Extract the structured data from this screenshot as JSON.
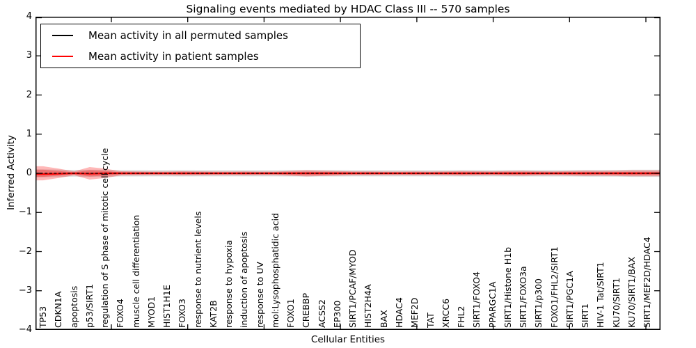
{
  "title": "Signaling events mediated by HDAC Class III -- 570 samples",
  "axes": {
    "xlabel": "Cellular Entities",
    "ylabel": "Inferred Activity",
    "ytick_labels": [
      "4",
      "3",
      "2",
      "1",
      "0",
      "−1",
      "−2",
      "−3",
      "−4"
    ]
  },
  "legend": {
    "items": [
      {
        "label": "Mean activity in all permuted samples",
        "color": "#000000"
      },
      {
        "label": "Mean activity in patient samples",
        "color": "#ff0000"
      }
    ]
  },
  "colors": {
    "patient_line": "#ff0000",
    "permuted_line": "#000000",
    "patient_band": "rgba(255,0,0,0.28)",
    "permuted_band": "rgba(0,0,0,0.14)",
    "spine": "#000000",
    "background": "#ffffff"
  },
  "chart_data": {
    "type": "line",
    "title": "Signaling events mediated by HDAC Class III -- 570 samples",
    "xlabel": "Cellular Entities",
    "ylabel": "Inferred Activity",
    "ylim": [
      -4,
      4
    ],
    "grid": false,
    "legend_position": "upper left",
    "categories": [
      "TP53",
      "CDKN1A",
      "apoptosis",
      "p53/SIRT1",
      "regulation of S phase of mitotic cell cycle",
      "FOXO4",
      "muscle cell differentiation",
      "MYOD1",
      "HIST1H1E",
      "FOXO3",
      "response to nutrient levels",
      "KAT2B",
      "response to hypoxia",
      "induction of apoptosis",
      "response to UV",
      "mol:Lysophosphatidic acid",
      "FOXO1",
      "CREBBP",
      "ACSS2",
      "EP300",
      "SIRT1/PCAF/MYOD",
      "HIST2H4A",
      "BAX",
      "HDAC4",
      "MEF2D",
      "TAT",
      "XRCC6",
      "FHL2",
      "SIRT1/FOXO4",
      "PPARGC1A",
      "SIRT1/Histone H1b",
      "SIRT1/FOXO3a",
      "SIRT1/p300",
      "FOXO1/FHL2/SIRT1",
      "SIRT1/PGC1A",
      "SIRT1",
      "HIV-1 Tat/SIRT1",
      "KU70/SIRT1",
      "KU70/SIRT1/BAX",
      "SIRT1/MEF2D/HDAC4"
    ],
    "series": [
      {
        "name": "Mean activity in all permuted samples",
        "color": "#000000",
        "line_style": "dashed",
        "values": [
          0,
          0,
          0,
          0,
          0,
          0,
          0,
          0,
          0,
          0,
          0,
          0,
          0,
          0,
          0,
          0,
          0,
          0,
          0,
          0,
          0,
          0,
          0,
          0,
          0,
          0,
          0,
          0,
          0,
          0,
          0,
          0,
          0,
          0,
          0,
          0,
          0,
          0,
          0,
          0
        ]
      },
      {
        "name": "Mean activity in patient samples",
        "color": "#ff0000",
        "line_style": "solid",
        "values": [
          -0.02,
          -0.01,
          0,
          -0.01,
          0,
          0,
          0,
          0,
          0,
          0,
          0,
          0,
          0,
          0,
          0,
          0,
          0,
          0,
          0,
          0,
          0,
          0,
          0,
          0,
          0,
          0,
          0,
          0,
          0,
          0,
          0,
          0,
          0,
          0,
          0,
          0,
          0,
          0,
          0,
          0
        ]
      }
    ],
    "bands": [
      {
        "name": "permuted-samples-range",
        "color": "rgba(0,0,0,0.14)",
        "center": 0,
        "halfwidths": [
          0.1,
          0.095,
          0.085,
          0.09,
          0.09,
          0.08,
          0.08,
          0.078,
          0.078,
          0.08,
          0.078,
          0.078,
          0.078,
          0.078,
          0.078,
          0.078,
          0.08,
          0.082,
          0.08,
          0.08,
          0.078,
          0.078,
          0.078,
          0.078,
          0.078,
          0.078,
          0.078,
          0.08,
          0.08,
          0.078,
          0.08,
          0.082,
          0.08,
          0.08,
          0.08,
          0.085,
          0.085,
          0.085,
          0.09,
          0.09
        ]
      },
      {
        "name": "patient-samples-range-outer",
        "color": "rgba(255,0,0,0.28)",
        "center": 0,
        "halfwidths": [
          0.18,
          0.12,
          0.05,
          0.16,
          0.12,
          0.053,
          0.05,
          0.045,
          0.045,
          0.053,
          0.05,
          0.045,
          0.045,
          0.05,
          0.045,
          0.045,
          0.062,
          0.08,
          0.07,
          0.057,
          0.05,
          0.05,
          0.045,
          0.045,
          0.05,
          0.045,
          0.05,
          0.057,
          0.053,
          0.05,
          0.057,
          0.062,
          0.053,
          0.05,
          0.057,
          0.068,
          0.062,
          0.068,
          0.075,
          0.075
        ]
      },
      {
        "name": "patient-samples-range-inner",
        "color": "rgba(255,0,0,0.28)",
        "center": 0,
        "halfwidths": [
          0.09,
          0.06,
          0.025,
          0.08,
          0.06,
          0.027,
          0.025,
          0.022,
          0.022,
          0.027,
          0.025,
          0.022,
          0.022,
          0.025,
          0.022,
          0.022,
          0.031,
          0.04,
          0.035,
          0.028,
          0.025,
          0.025,
          0.022,
          0.022,
          0.025,
          0.022,
          0.025,
          0.028,
          0.027,
          0.025,
          0.028,
          0.031,
          0.027,
          0.025,
          0.028,
          0.034,
          0.031,
          0.034,
          0.037,
          0.037
        ]
      }
    ]
  }
}
